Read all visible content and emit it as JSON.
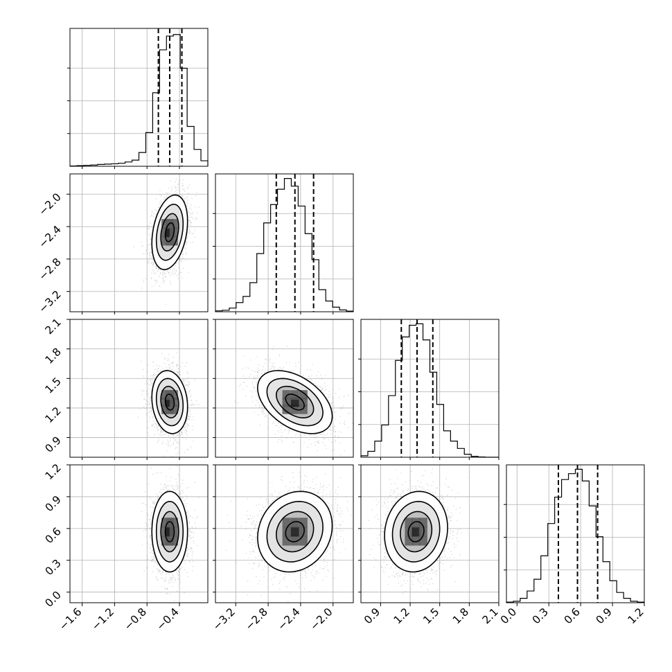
{
  "chart_data": {
    "type": "corner",
    "parameters": [
      {
        "range": [
          -1.75,
          -0.05
        ],
        "ticks": [
          -1.6,
          -1.2,
          -0.8,
          -0.4
        ],
        "tick_labels": [
          "−1.6",
          "−1.2",
          "−0.8",
          "−0.4"
        ],
        "quantiles": [
          -0.66,
          -0.52,
          -0.37
        ],
        "hist_edges": [
          -1.75,
          -1.665,
          -1.58,
          -1.495,
          -1.41,
          -1.325,
          -1.24,
          -1.155,
          -1.07,
          -0.985,
          -0.9,
          -0.815,
          -0.73,
          -0.645,
          -0.56,
          -0.475,
          -0.39,
          -0.305,
          -0.22,
          -0.135,
          -0.05
        ],
        "hist_counts": [
          1,
          2,
          3,
          4,
          6,
          7,
          8,
          10,
          14,
          20,
          45,
          110,
          240,
          380,
          425,
          430,
          320,
          130,
          55,
          18
        ],
        "hist_max": 450
      },
      {
        "range": [
          -3.45,
          -1.75
        ],
        "ticks": [
          -3.2,
          -2.8,
          -2.4,
          -2.0
        ],
        "tick_labels": [
          "−3.2",
          "−2.8",
          "−2.4",
          "−2.0"
        ],
        "quantiles": [
          -2.7,
          -2.47,
          -2.24
        ],
        "hist_edges": [
          -3.45,
          -3.365,
          -3.28,
          -3.195,
          -3.11,
          -3.025,
          -2.94,
          -2.855,
          -2.77,
          -2.685,
          -2.6,
          -2.515,
          -2.43,
          -2.345,
          -2.26,
          -2.175,
          -2.09,
          -2.005,
          -1.92,
          -1.835,
          -1.75
        ],
        "hist_counts": [
          3,
          5,
          12,
          30,
          50,
          95,
          190,
          290,
          350,
          400,
          435,
          410,
          345,
          255,
          170,
          72,
          35,
          15,
          6,
          2
        ],
        "hist_max": 450
      },
      {
        "range": [
          0.7,
          2.1
        ],
        "ticks": [
          0.9,
          1.2,
          1.5,
          1.8,
          2.1
        ],
        "tick_labels": [
          "0.9",
          "1.2",
          "1.5",
          "1.8",
          "2.1"
        ],
        "quantiles": [
          1.11,
          1.27,
          1.43
        ],
        "hist_edges": [
          0.7,
          0.77,
          0.84,
          0.91,
          0.98,
          1.05,
          1.12,
          1.19,
          1.26,
          1.33,
          1.4,
          1.47,
          1.54,
          1.61,
          1.68,
          1.75,
          1.82,
          1.89,
          1.96,
          2.03,
          2.1
        ],
        "hist_counts": [
          5,
          20,
          55,
          110,
          210,
          330,
          410,
          450,
          455,
          400,
          290,
          180,
          90,
          55,
          30,
          10,
          3,
          1,
          0,
          0
        ],
        "hist_max": 470
      },
      {
        "range": [
          -0.1,
          1.2
        ],
        "ticks": [
          0.0,
          0.3,
          0.6,
          0.9,
          1.2
        ],
        "tick_labels": [
          "0.0",
          "0.3",
          "0.6",
          "0.9",
          "1.2"
        ],
        "quantiles": [
          0.39,
          0.57,
          0.76
        ],
        "hist_edges": [
          -0.1,
          -0.035,
          0.03,
          0.095,
          0.16,
          0.225,
          0.29,
          0.355,
          0.42,
          0.485,
          0.55,
          0.615,
          0.68,
          0.745,
          0.81,
          0.875,
          0.94,
          1.005,
          1.07,
          1.135,
          1.2
        ],
        "hist_counts": [
          2,
          5,
          15,
          40,
          80,
          160,
          270,
          360,
          420,
          440,
          455,
          415,
          330,
          225,
          140,
          75,
          35,
          15,
          5,
          2
        ],
        "hist_max": 470
      }
    ],
    "pairs": [
      {
        "row": 1,
        "col": 0,
        "mean": [
          -0.52,
          -2.47
        ],
        "sd": [
          0.11,
          0.23
        ],
        "rho": 0.3,
        "n": 2600
      },
      {
        "row": 2,
        "col": 0,
        "mean": [
          -0.52,
          1.26
        ],
        "sd": [
          0.11,
          0.16
        ],
        "rho": -0.15,
        "n": 2600
      },
      {
        "row": 2,
        "col": 1,
        "mean": [
          -2.47,
          1.26
        ],
        "sd": [
          0.23,
          0.16
        ],
        "rho": -0.45,
        "n": 2600
      },
      {
        "row": 3,
        "col": 0,
        "mean": [
          -0.52,
          0.57
        ],
        "sd": [
          0.11,
          0.19
        ],
        "rho": 0.0,
        "n": 2600
      },
      {
        "row": 3,
        "col": 1,
        "mean": [
          -2.47,
          0.57
        ],
        "sd": [
          0.23,
          0.19
        ],
        "rho": 0.15,
        "n": 2600
      },
      {
        "row": 3,
        "col": 2,
        "mean": [
          1.26,
          0.57
        ],
        "sd": [
          0.16,
          0.19
        ],
        "rho": 0.1,
        "n": 2600
      }
    ],
    "contour_levels_sigma": [
      0.5,
      1.0,
      1.5,
      2.0
    ],
    "colors": {
      "points": "#9a9a9a",
      "lines": "#000000",
      "grid": "#b0b0b0"
    },
    "grid": true
  }
}
